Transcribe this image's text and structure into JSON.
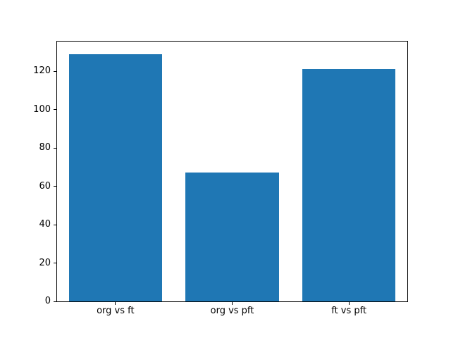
{
  "figure": {
    "background": "#ffffff"
  },
  "chart_data": {
    "type": "bar",
    "categories": [
      "org vs ft",
      "org vs pft",
      "ft vs pft"
    ],
    "values": [
      129,
      67,
      121
    ],
    "title": "",
    "xlabel": "",
    "ylabel": "",
    "ylim": [
      0,
      135.45
    ],
    "yticks": [
      0,
      20,
      40,
      60,
      80,
      100,
      120
    ],
    "bar_width_fraction": 0.8,
    "bar_color": "#1f77b4",
    "axes_color": "#000000",
    "grid": false,
    "legend": null
  }
}
